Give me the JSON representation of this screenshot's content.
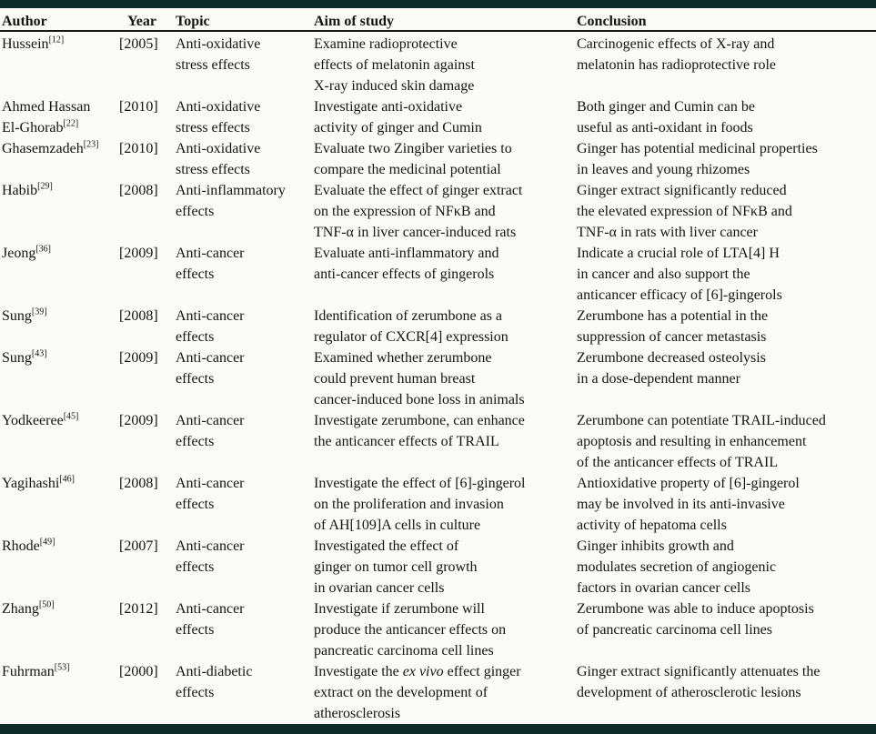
{
  "theme": {
    "bar_color": "#0d2b28",
    "rule_color": "#161616",
    "background": "#fafaf8",
    "text_color": "#141414"
  },
  "table": {
    "columns": [
      "Author",
      "Year",
      "Topic",
      "Aim of study",
      "Conclusion"
    ],
    "rows": [
      {
        "author": "Hussein",
        "ref": "[12]",
        "year": "[2005]",
        "topic": "Anti-oxidative\nstress effects",
        "aim": "Examine radioprotective\neffects of melatonin against\nX-ray induced skin damage",
        "conclusion": "Carcinogenic effects of X-ray and\nmelatonin has radioprotective role"
      },
      {
        "author": "Ahmed Hassan\nEl-Ghorab",
        "ref": "[22]",
        "year": "[2010]",
        "topic": "Anti-oxidative\nstress effects",
        "aim": "Investigate anti-oxidative\nactivity of ginger and Cumin",
        "conclusion": "Both ginger and Cumin can be\nuseful as anti-oxidant in foods"
      },
      {
        "author": "Ghasemzadeh",
        "ref": "[23]",
        "year": "[2010]",
        "topic": "Anti-oxidative\nstress effects",
        "aim": "Evaluate two Zingiber varieties to\ncompare the medicinal potential",
        "conclusion": "Ginger has potential medicinal properties\nin leaves and young rhizomes"
      },
      {
        "author": "Habib",
        "ref": "[29]",
        "year": "[2008]",
        "topic": "Anti-inflammatory\neffects",
        "aim": "Evaluate the effect of ginger extract\non the expression of NFκB and\nTNF-α in liver cancer-induced rats",
        "conclusion": "Ginger extract significantly reduced\nthe elevated expression of NFκB and\nTNF-α in rats with liver cancer"
      },
      {
        "author": "Jeong",
        "ref": "[36]",
        "year": "[2009]",
        "topic": "Anti-cancer\neffects",
        "aim": "Evaluate anti-inflammatory and\nanti-cancer effects of gingerols",
        "conclusion": "Indicate a crucial role of LTA[4] H\nin cancer and also support the\nanticancer efficacy of [6]-gingerols"
      },
      {
        "author": "Sung",
        "ref": "[39]",
        "year": "[2008]",
        "topic": "Anti-cancer\neffects",
        "aim": "Identification of zerumbone as a\nregulator of CXCR[4] expression",
        "conclusion": "Zerumbone has a potential in the\nsuppression of cancer metastasis"
      },
      {
        "author": "Sung",
        "ref": "[43]",
        "year": "[2009]",
        "topic": "Anti-cancer\neffects",
        "aim": "Examined whether zerumbone\ncould prevent human breast\ncancer-induced bone loss in animals",
        "conclusion": "Zerumbone decreased osteolysis\nin a dose-dependent manner"
      },
      {
        "author": "Yodkeeree",
        "ref": "[45]",
        "year": "[2009]",
        "topic": "Anti-cancer\neffects",
        "aim": "Investigate zerumbone, can enhance\nthe anticancer effects of TRAIL",
        "conclusion": "Zerumbone can potentiate TRAIL-induced\napoptosis and resulting in enhancement\nof the anticancer effects of TRAIL"
      },
      {
        "author": "Yagihashi",
        "ref": "[46]",
        "year": "[2008]",
        "topic": "Anti-cancer\neffects",
        "aim": "Investigate the effect of [6]-gingerol\non the proliferation and invasion\nof AH[109]A cells in culture",
        "conclusion": "Antioxidative property of [6]-gingerol\nmay be involved in its anti-invasive\nactivity of hepatoma cells"
      },
      {
        "author": "Rhode",
        "ref": "[49]",
        "year": "[2007]",
        "topic": "Anti-cancer\neffects",
        "aim": "Investigated the effect of\nginger on tumor cell growth\nin ovarian cancer cells",
        "conclusion": "Ginger inhibits growth and\nmodulates secretion of angiogenic\nfactors in ovarian cancer cells"
      },
      {
        "author": "Zhang",
        "ref": "[50]",
        "year": "[2012]",
        "topic": "Anti-cancer\neffects",
        "aim": "Investigate if zerumbone will\nproduce the anticancer effects on\npancreatic carcinoma cell lines",
        "conclusion": "Zerumbone was able to induce apoptosis\nof pancreatic carcinoma cell lines"
      },
      {
        "author": "Fuhrman",
        "ref": "[53]",
        "year": "[2000]",
        "topic": "Anti-diabetic\neffects",
        "aim_pre": "Investigate the ",
        "aim_italic": "ex vivo",
        "aim_post": " effect ginger\nextract on the development of\natherosclerosis",
        "conclusion": "Ginger extract significantly attenuates the\ndevelopment of atherosclerotic lesions"
      }
    ]
  }
}
